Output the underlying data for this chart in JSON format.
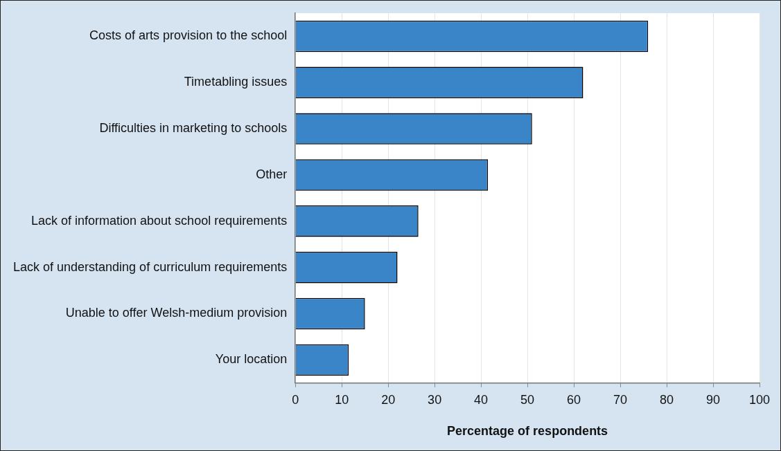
{
  "chart_data": {
    "type": "bar",
    "orientation": "horizontal",
    "xlabel": "Percentage of respondents",
    "categories": [
      "Costs of arts provision to the school",
      "Timetabling issues",
      "Difficulties in marketing to schools",
      "Other",
      "Lack of information about school requirements",
      "Lack of understanding of curriculum requirements",
      "Unable to offer Welsh-medium provision",
      "Your location"
    ],
    "values": [
      76,
      62,
      51,
      41.5,
      26.5,
      22,
      15,
      11.5
    ],
    "color": "#3a84c8",
    "xlim": [
      0,
      100
    ],
    "xticks": [
      0,
      10,
      20,
      30,
      40,
      50,
      60,
      70,
      80,
      90,
      100
    ],
    "grid": "x",
    "legend": false
  }
}
